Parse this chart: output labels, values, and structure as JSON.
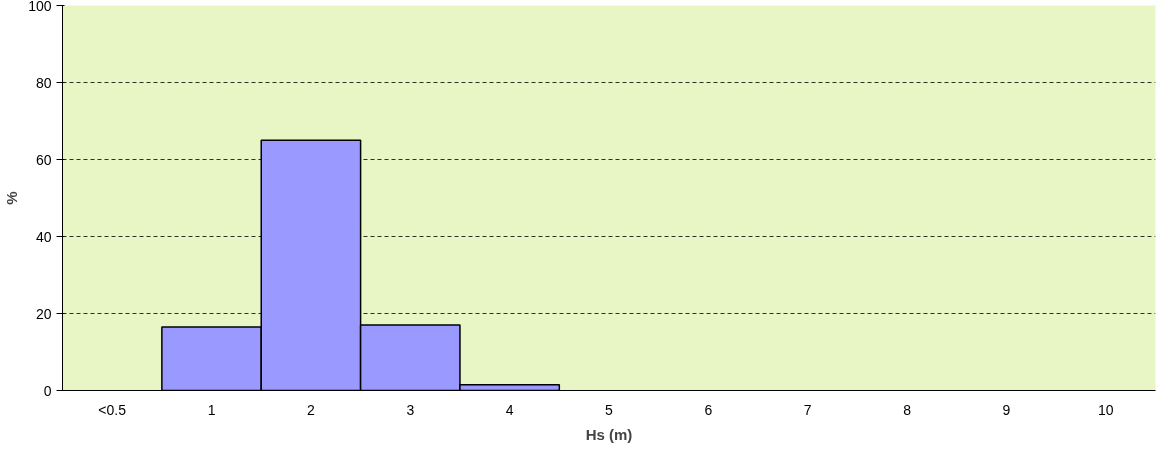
{
  "chart_data": {
    "type": "bar",
    "xlabel": "Hs (m)",
    "ylabel": "%",
    "categories": [
      "<0.5",
      "1",
      "2",
      "3",
      "4",
      "5",
      "6",
      "7",
      "8",
      "9",
      "10"
    ],
    "values": [
      null,
      16.5,
      65,
      17,
      1.5,
      null,
      null,
      null,
      null,
      null,
      null
    ],
    "color": "#9999ff",
    "ylim": [
      0,
      100
    ],
    "yticks": [
      0,
      20,
      40,
      60,
      80,
      100
    ],
    "grid": "y"
  }
}
